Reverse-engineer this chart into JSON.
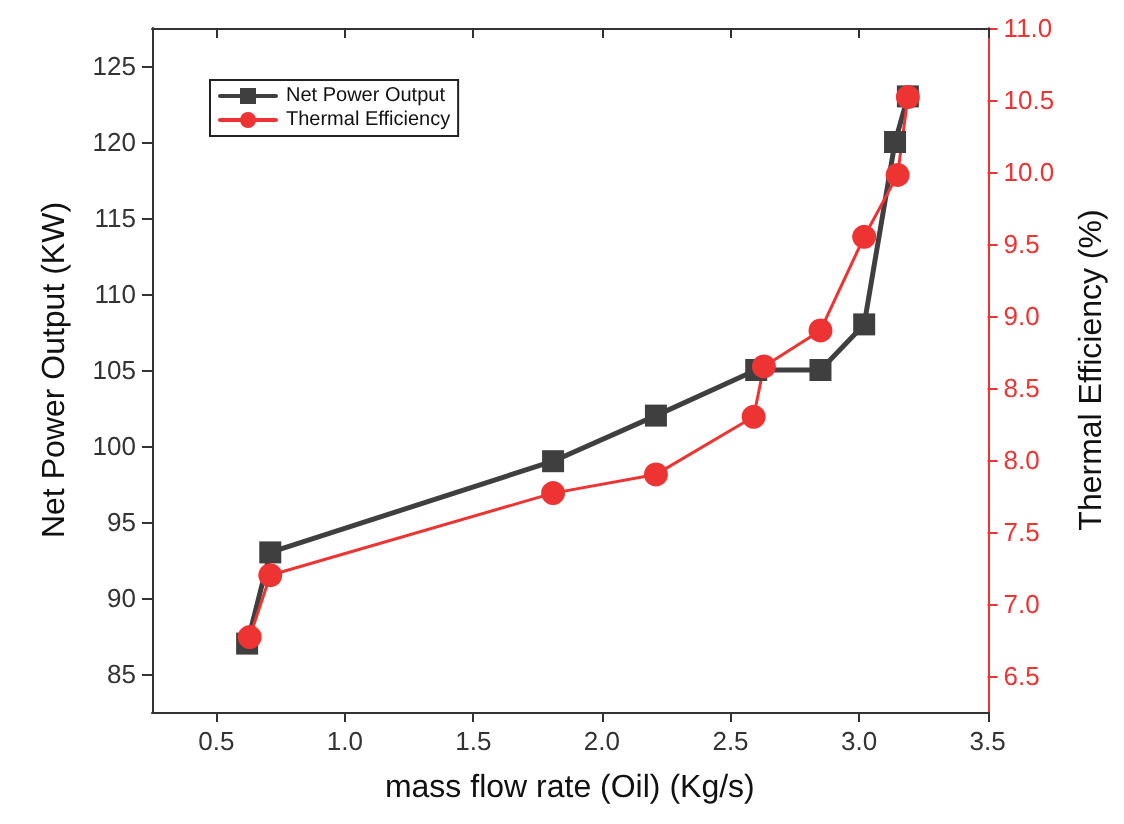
{
  "chart_data": {
    "type": "line",
    "xlabel": "mass flow rate (Oil) (Kg/s)",
    "ylabel": "Net Power Output (KW)",
    "y2label": "Thermal Efficiency (%)",
    "xlim": [
      0.25,
      3.5
    ],
    "xticks": [
      0.5,
      {
        "value": 1,
        "label": "1.0"
      },
      1.5,
      {
        "value": 2,
        "label": "2.0"
      },
      2.5,
      {
        "value": 3,
        "label": "3.0"
      },
      3.5
    ],
    "ylim": [
      82.5,
      127.5
    ],
    "yticks": [
      85,
      90,
      95,
      100,
      105,
      110,
      115,
      120,
      125
    ],
    "y2lim": [
      6.25,
      11
    ],
    "y2ticks": [
      6.5,
      {
        "value": 7,
        "label": "7.0"
      },
      7.5,
      {
        "value": 8,
        "label": "8.0"
      },
      8.5,
      {
        "value": 9,
        "label": "9.0"
      },
      9.5,
      {
        "value": 10,
        "label": "10.0"
      },
      10.5,
      {
        "value": 11,
        "label": "11.0"
      }
    ],
    "grid": false,
    "legend": "top left",
    "line_style": "solid",
    "series": [
      {
        "name": "Net Power Output",
        "color": "#3f3f3f",
        "marker": "square",
        "x": [
          0.62,
          0.71,
          1.81,
          2.21,
          2.6,
          2.85,
          3.02,
          3.14,
          3.19
        ],
        "values": [
          87,
          93,
          99,
          102,
          105,
          105,
          108,
          120,
          123
        ]
      },
      {
        "name": "Thermal Efficiency",
        "color": "#ee3333",
        "marker": "circle",
        "axis": "y2",
        "x": [
          0.63,
          0.71,
          1.81,
          2.21,
          2.59,
          2.63,
          2.85,
          3.02,
          3.15,
          3.19
        ],
        "values": [
          6.77,
          7.2,
          7.77,
          7.9,
          8.3,
          8.65,
          8.9,
          9.55,
          9.98,
          10.52
        ]
      }
    ]
  }
}
